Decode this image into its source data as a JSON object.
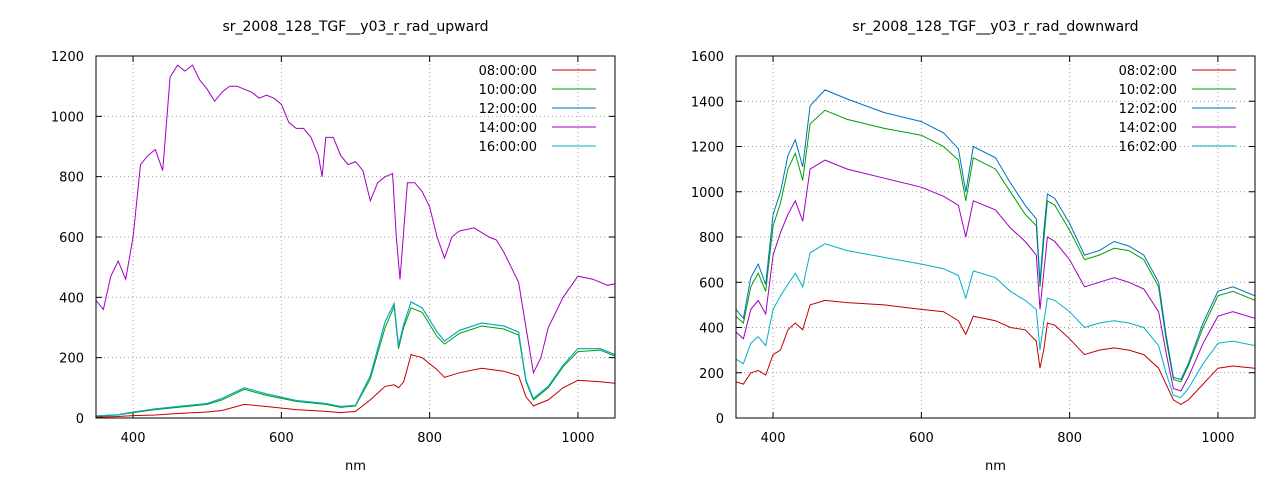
{
  "chart_data": [
    {
      "type": "line",
      "title": "sr_2008_128_TGF__y03_r_rad_upward",
      "xlabel": "nm",
      "ylabel": "",
      "xlim": [
        350,
        1050
      ],
      "ylim": [
        0,
        1200
      ],
      "xticks": [
        400,
        600,
        800,
        1000
      ],
      "yticks": [
        0,
        200,
        400,
        600,
        800,
        1000,
        1200
      ],
      "grid": true,
      "legend_position": "top-right",
      "series": [
        {
          "name": "08:00:00",
          "color": "#c00000",
          "x": [
            350,
            380,
            400,
            430,
            460,
            500,
            520,
            550,
            580,
            620,
            660,
            680,
            700,
            720,
            740,
            752,
            758,
            765,
            775,
            790,
            810,
            820,
            840,
            870,
            900,
            920,
            930,
            940,
            960,
            980,
            1000,
            1030,
            1050
          ],
          "y": [
            3,
            5,
            8,
            10,
            15,
            20,
            25,
            45,
            38,
            28,
            22,
            18,
            22,
            60,
            105,
            110,
            100,
            120,
            210,
            200,
            160,
            135,
            150,
            165,
            155,
            140,
            70,
            40,
            60,
            100,
            125,
            120,
            115
          ]
        },
        {
          "name": "10:00:00",
          "color": "#00a000",
          "x": [
            350,
            380,
            400,
            430,
            460,
            500,
            520,
            550,
            580,
            620,
            660,
            680,
            700,
            720,
            740,
            752,
            758,
            765,
            775,
            790,
            810,
            820,
            840,
            870,
            900,
            920,
            930,
            940,
            960,
            980,
            1000,
            1030,
            1050
          ],
          "y": [
            6,
            10,
            18,
            28,
            35,
            45,
            60,
            95,
            75,
            55,
            45,
            35,
            40,
            130,
            300,
            370,
            230,
            300,
            365,
            350,
            270,
            245,
            280,
            305,
            295,
            275,
            120,
            60,
            100,
            170,
            220,
            225,
            205
          ]
        },
        {
          "name": "12:00:00",
          "color": "#0070c0",
          "x": [
            350,
            380,
            400,
            430,
            460,
            500,
            520,
            550,
            580,
            620,
            660,
            680,
            700,
            720,
            740,
            752,
            758,
            765,
            775,
            790,
            810,
            820,
            840,
            870,
            900,
            920,
            930,
            940,
            960,
            980,
            1000,
            1030,
            1050
          ],
          "y": [
            7,
            11,
            20,
            30,
            38,
            48,
            65,
            100,
            80,
            58,
            48,
            38,
            42,
            140,
            320,
            380,
            240,
            310,
            385,
            365,
            285,
            255,
            290,
            315,
            305,
            285,
            125,
            65,
            105,
            175,
            230,
            230,
            210
          ]
        },
        {
          "name": "14:00:00",
          "color": "#a000c0",
          "x": [
            350,
            360,
            370,
            380,
            390,
            400,
            410,
            420,
            430,
            440,
            450,
            460,
            470,
            480,
            490,
            500,
            510,
            520,
            530,
            540,
            560,
            570,
            580,
            590,
            600,
            610,
            620,
            630,
            640,
            650,
            655,
            660,
            670,
            680,
            690,
            700,
            710,
            720,
            730,
            740,
            750,
            755,
            760,
            770,
            780,
            790,
            800,
            810,
            820,
            830,
            840,
            860,
            880,
            890,
            900,
            910,
            920,
            930,
            940,
            950,
            960,
            980,
            1000,
            1020,
            1040,
            1050
          ],
          "y": [
            390,
            360,
            470,
            520,
            460,
            600,
            840,
            870,
            890,
            820,
            1130,
            1170,
            1150,
            1170,
            1120,
            1090,
            1050,
            1080,
            1100,
            1100,
            1080,
            1060,
            1070,
            1060,
            1040,
            980,
            960,
            960,
            930,
            870,
            800,
            930,
            930,
            870,
            840,
            850,
            820,
            720,
            780,
            800,
            810,
            600,
            460,
            780,
            780,
            750,
            700,
            600,
            530,
            600,
            620,
            630,
            600,
            590,
            550,
            500,
            450,
            300,
            150,
            200,
            300,
            400,
            470,
            460,
            440,
            445
          ]
        },
        {
          "name": "16:00:00",
          "color": "#00b0c8",
          "x": [
            350,
            380,
            400,
            430,
            460,
            500,
            520,
            550,
            580,
            620,
            660,
            680,
            700,
            720,
            740,
            752,
            758,
            765,
            775,
            790,
            810,
            820,
            840,
            870,
            900,
            920,
            930,
            940,
            960,
            980,
            1000,
            1030,
            1050
          ],
          "y": [
            7,
            11,
            20,
            30,
            38,
            48,
            65,
            100,
            80,
            58,
            48,
            38,
            42,
            140,
            320,
            380,
            240,
            310,
            385,
            365,
            285,
            255,
            290,
            315,
            305,
            285,
            125,
            65,
            105,
            175,
            230,
            230,
            210
          ]
        }
      ]
    },
    {
      "type": "line",
      "title": "sr_2008_128_TGF__y03_r_rad_downward",
      "xlabel": "nm",
      "ylabel": "",
      "xlim": [
        350,
        1050
      ],
      "ylim": [
        0,
        1600
      ],
      "xticks": [
        400,
        600,
        800,
        1000
      ],
      "yticks": [
        0,
        200,
        400,
        600,
        800,
        1000,
        1200,
        1400,
        1600
      ],
      "grid": true,
      "legend_position": "top-right",
      "series": [
        {
          "name": "08:02:00",
          "color": "#c00000",
          "x": [
            350,
            360,
            370,
            380,
            390,
            400,
            410,
            420,
            430,
            440,
            450,
            470,
            500,
            550,
            600,
            630,
            650,
            660,
            670,
            700,
            720,
            740,
            755,
            760,
            765,
            770,
            780,
            800,
            820,
            840,
            860,
            880,
            900,
            920,
            930,
            940,
            950,
            960,
            980,
            1000,
            1020,
            1050
          ],
          "y": [
            160,
            150,
            200,
            210,
            190,
            280,
            300,
            390,
            420,
            390,
            500,
            520,
            510,
            500,
            480,
            470,
            430,
            370,
            450,
            430,
            400,
            390,
            340,
            220,
            300,
            420,
            410,
            350,
            280,
            300,
            310,
            300,
            280,
            220,
            150,
            80,
            60,
            80,
            150,
            220,
            230,
            220
          ]
        },
        {
          "name": "10:02:00",
          "color": "#00a000",
          "x": [
            350,
            360,
            370,
            380,
            390,
            400,
            410,
            420,
            430,
            440,
            450,
            470,
            500,
            550,
            600,
            630,
            650,
            660,
            670,
            700,
            720,
            740,
            755,
            760,
            765,
            770,
            780,
            800,
            820,
            840,
            860,
            880,
            900,
            920,
            930,
            940,
            950,
            960,
            980,
            1000,
            1020,
            1050
          ],
          "y": [
            450,
            420,
            580,
            640,
            560,
            850,
            950,
            1100,
            1170,
            1050,
            1300,
            1360,
            1320,
            1280,
            1250,
            1200,
            1140,
            960,
            1150,
            1100,
            1000,
            900,
            850,
            580,
            780,
            960,
            940,
            830,
            700,
            720,
            750,
            740,
            700,
            580,
            350,
            170,
            160,
            230,
            400,
            540,
            560,
            520
          ]
        },
        {
          "name": "12:02:00",
          "color": "#0070c0",
          "x": [
            350,
            360,
            370,
            380,
            390,
            400,
            410,
            420,
            430,
            440,
            450,
            470,
            500,
            550,
            600,
            630,
            650,
            660,
            670,
            700,
            720,
            740,
            755,
            760,
            765,
            770,
            780,
            800,
            820,
            840,
            860,
            880,
            900,
            920,
            930,
            940,
            950,
            960,
            980,
            1000,
            1020,
            1050
          ],
          "y": [
            480,
            440,
            620,
            680,
            590,
            900,
            1000,
            1160,
            1230,
            1110,
            1380,
            1450,
            1410,
            1350,
            1310,
            1260,
            1190,
            1000,
            1200,
            1150,
            1040,
            940,
            880,
            600,
            820,
            990,
            970,
            860,
            720,
            740,
            780,
            760,
            720,
            600,
            370,
            180,
            170,
            240,
            420,
            560,
            580,
            540
          ]
        },
        {
          "name": "14:02:00",
          "color": "#a000c0",
          "x": [
            350,
            360,
            370,
            380,
            390,
            400,
            410,
            420,
            430,
            440,
            450,
            470,
            500,
            550,
            600,
            630,
            650,
            660,
            670,
            700,
            720,
            740,
            755,
            760,
            765,
            770,
            780,
            800,
            820,
            840,
            860,
            880,
            900,
            920,
            930,
            940,
            950,
            960,
            980,
            1000,
            1020,
            1050
          ],
          "y": [
            380,
            350,
            480,
            520,
            460,
            720,
            820,
            900,
            960,
            870,
            1100,
            1140,
            1100,
            1060,
            1020,
            980,
            940,
            800,
            960,
            920,
            840,
            780,
            720,
            480,
            640,
            800,
            780,
            700,
            580,
            600,
            620,
            600,
            570,
            470,
            290,
            130,
            120,
            180,
            330,
            450,
            470,
            440
          ]
        },
        {
          "name": "16:02:00",
          "color": "#00b0c8",
          "x": [
            350,
            360,
            370,
            380,
            390,
            400,
            410,
            420,
            430,
            440,
            450,
            470,
            500,
            550,
            600,
            630,
            650,
            660,
            670,
            700,
            720,
            740,
            755,
            760,
            765,
            770,
            780,
            800,
            820,
            840,
            860,
            880,
            900,
            920,
            930,
            940,
            950,
            960,
            980,
            1000,
            1020,
            1050
          ],
          "y": [
            260,
            240,
            330,
            360,
            320,
            480,
            540,
            590,
            640,
            580,
            730,
            770,
            740,
            710,
            680,
            660,
            630,
            530,
            650,
            620,
            560,
            520,
            480,
            300,
            420,
            530,
            520,
            470,
            400,
            420,
            430,
            420,
            400,
            320,
            200,
            100,
            90,
            130,
            240,
            330,
            340,
            320
          ]
        }
      ]
    }
  ]
}
